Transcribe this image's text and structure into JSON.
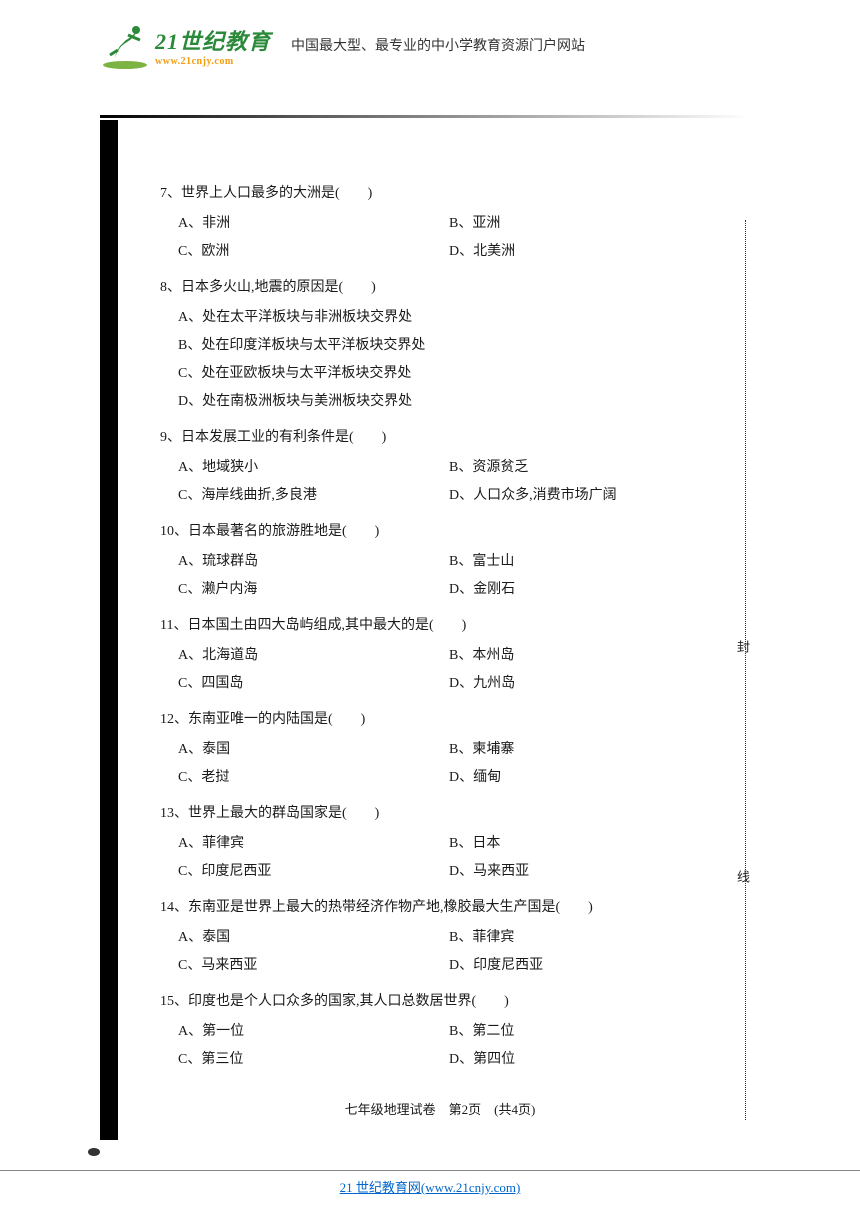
{
  "header": {
    "logo_title": "21世纪教育",
    "logo_url": "www.21cnjy.com",
    "description": "中国最大型、最专业的中小学教育资源门户网站"
  },
  "questions": [
    {
      "num": "7",
      "text": "世界上人口最多的大洲是(　　)",
      "layout": "two",
      "options": {
        "A": "非洲",
        "B": "亚洲",
        "C": "欧洲",
        "D": "北美洲"
      }
    },
    {
      "num": "8",
      "text": "日本多火山,地震的原因是(　　)",
      "layout": "one",
      "options": {
        "A": "处在太平洋板块与非洲板块交界处",
        "B": "处在印度洋板块与太平洋板块交界处",
        "C": "处在亚欧板块与太平洋板块交界处",
        "D": "处在南极洲板块与美洲板块交界处"
      }
    },
    {
      "num": "9",
      "text": "日本发展工业的有利条件是(　　)",
      "layout": "two",
      "options": {
        "A": "地域狭小",
        "B": "资源贫乏",
        "C": "海岸线曲折,多良港",
        "D": "人口众多,消费市场广阔"
      }
    },
    {
      "num": "10",
      "text": "日本最著名的旅游胜地是(　　)",
      "layout": "two",
      "options": {
        "A": "琉球群岛",
        "B": "富士山",
        "C": "濑户内海",
        "D": "金刚石"
      }
    },
    {
      "num": "11",
      "text": "日本国土由四大岛屿组成,其中最大的是(　　)",
      "layout": "two",
      "options": {
        "A": "北海道岛",
        "B": "本州岛",
        "C": "四国岛",
        "D": "九州岛"
      }
    },
    {
      "num": "12",
      "text": "东南亚唯一的内陆国是(　　)",
      "layout": "two",
      "options": {
        "A": "泰国",
        "B": "柬埔寨",
        "C": "老挝",
        "D": "缅甸"
      }
    },
    {
      "num": "13",
      "text": "世界上最大的群岛国家是(　　)",
      "layout": "two",
      "options": {
        "A": "菲律宾",
        "B": "日本",
        "C": "印度尼西亚",
        "D": "马来西亚"
      }
    },
    {
      "num": "14",
      "text": "东南亚是世界上最大的热带经济作物产地,橡胶最大生产国是(　　)",
      "layout": "two",
      "options": {
        "A": "泰国",
        "B": "菲律宾",
        "C": "马来西亚",
        "D": "印度尼西亚"
      }
    },
    {
      "num": "15",
      "text": "印度也是个人口众多的国家,其人口总数居世界(　　)",
      "layout": "two",
      "options": {
        "A": "第一位",
        "B": "第二位",
        "C": "第三位",
        "D": "第四位"
      }
    }
  ],
  "page_footer": "七年级地理试卷　第2页　(共4页)",
  "bottom_link_text": "21 世纪教育网(www.21cnjy.com)",
  "binding_chars": [
    "封",
    "线"
  ],
  "colors": {
    "logo_green": "#2a8a3a",
    "logo_orange": "#f39c12",
    "text": "#1a1a1a",
    "link": "#0066cc"
  }
}
